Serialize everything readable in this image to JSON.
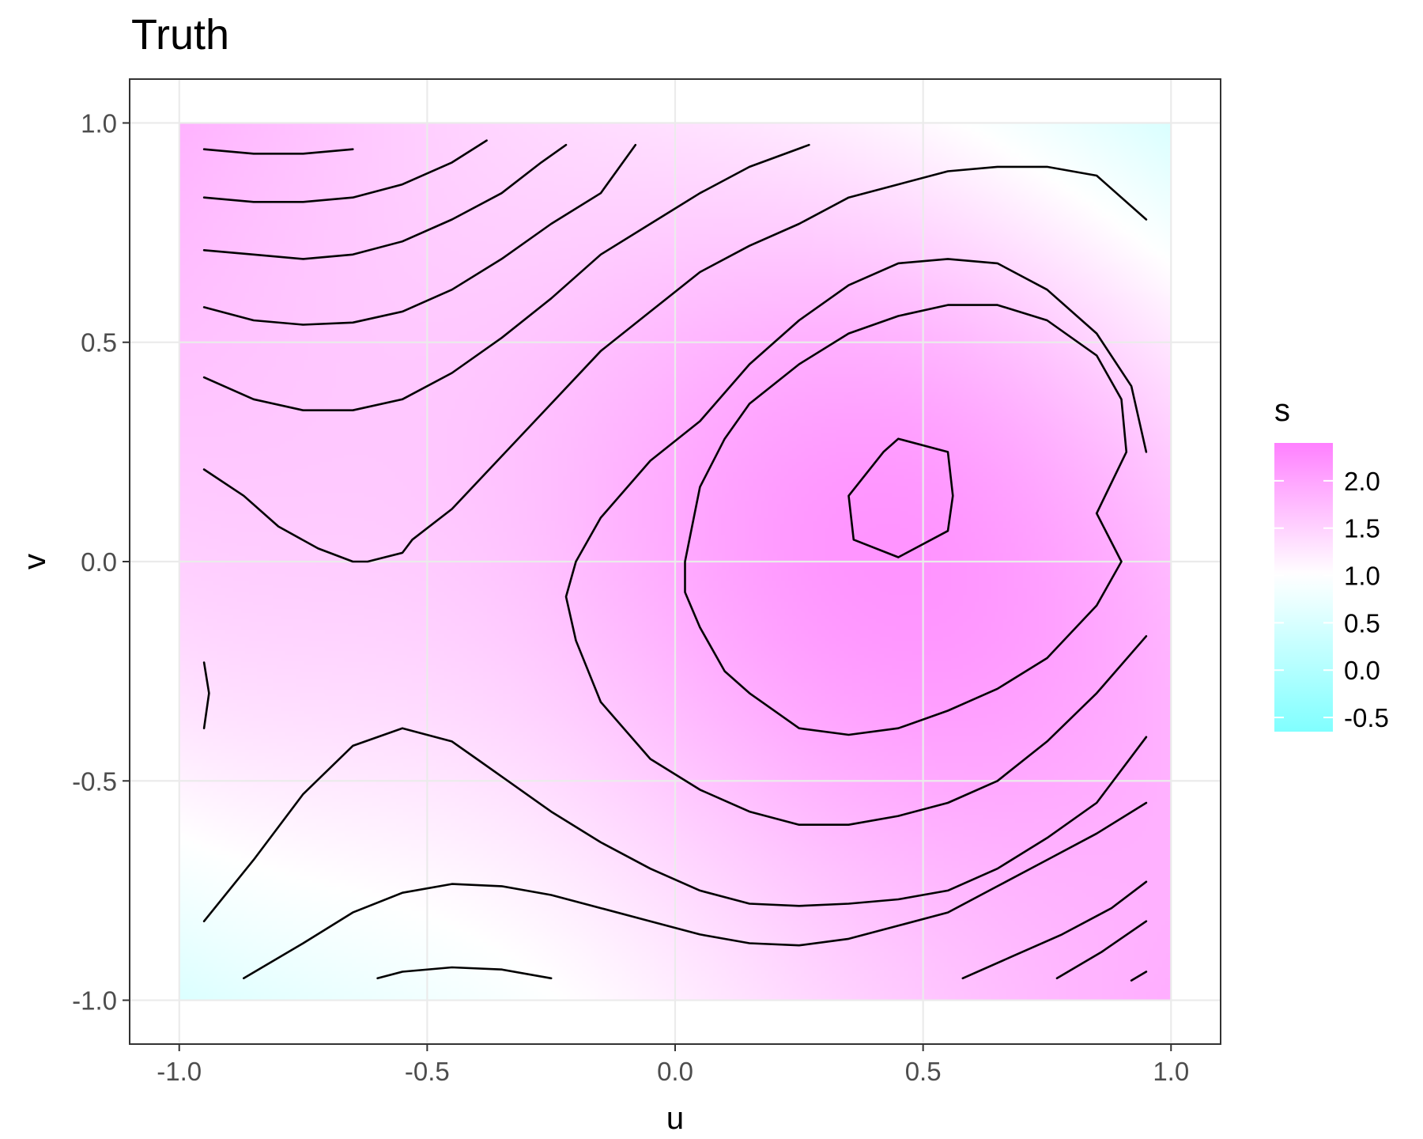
{
  "chart_data": {
    "type": "heatmap",
    "title": "Truth",
    "xlabel": "u",
    "ylabel": "v",
    "xlim": [
      -1.1,
      1.1
    ],
    "ylim": [
      -1.1,
      1.1
    ],
    "x_ticks": [
      -1.0,
      -0.5,
      0.0,
      0.5,
      1.0
    ],
    "x_tick_labels": [
      "-1.0",
      "-0.5",
      "0.0",
      "0.5",
      "1.0"
    ],
    "y_ticks": [
      -1.0,
      -0.5,
      0.0,
      0.5,
      1.0
    ],
    "y_tick_labels": [
      "-1.0",
      "-0.5",
      "0.0",
      "0.5",
      "1.0"
    ],
    "grid": true,
    "legend": {
      "title": "s",
      "position": "right",
      "range": [
        -0.65,
        2.4
      ],
      "ticks": [
        2.0,
        1.5,
        1.0,
        0.5,
        0.0,
        -0.5
      ],
      "tick_labels": [
        "2.0",
        "1.5",
        "1.0",
        "0.5",
        "0.0",
        "-0.5"
      ],
      "colors": {
        "low": "#80ffff",
        "mid": "#ffffff",
        "high": "#ff80ff",
        "midpoint": 1.0
      }
    },
    "field": {
      "description_terms": [
        {
          "type": "gaussian",
          "amp": 1.25,
          "u0": 0.45,
          "v0": 0.12,
          "su": 0.6,
          "sv": 0.65
        },
        {
          "type": "gaussian",
          "amp": 0.55,
          "u0": -1.0,
          "v0": -0.3,
          "su": 0.45,
          "sv": 0.7
        }
      ],
      "base": 0.95,
      "saddle_coef": 0.85
    },
    "contours": [
      {
        "level": "c1",
        "points": [
          [
            -0.95,
            0.94
          ],
          [
            -0.85,
            0.93
          ],
          [
            -0.75,
            0.93
          ],
          [
            -0.65,
            0.94
          ]
        ]
      },
      {
        "level": "c2",
        "points": [
          [
            -0.95,
            0.83
          ],
          [
            -0.85,
            0.82
          ],
          [
            -0.75,
            0.82
          ],
          [
            -0.65,
            0.83
          ],
          [
            -0.55,
            0.86
          ],
          [
            -0.45,
            0.91
          ],
          [
            -0.38,
            0.96
          ]
        ]
      },
      {
        "level": "c3",
        "points": [
          [
            -0.95,
            0.71
          ],
          [
            -0.85,
            0.7
          ],
          [
            -0.75,
            0.69
          ],
          [
            -0.65,
            0.7
          ],
          [
            -0.55,
            0.73
          ],
          [
            -0.45,
            0.78
          ],
          [
            -0.35,
            0.84
          ],
          [
            -0.27,
            0.91
          ],
          [
            -0.22,
            0.95
          ]
        ]
      },
      {
        "level": "c4",
        "points": [
          [
            -0.95,
            0.58
          ],
          [
            -0.85,
            0.55
          ],
          [
            -0.75,
            0.54
          ],
          [
            -0.65,
            0.545
          ],
          [
            -0.55,
            0.57
          ],
          [
            -0.45,
            0.62
          ],
          [
            -0.35,
            0.69
          ],
          [
            -0.25,
            0.77
          ],
          [
            -0.15,
            0.84
          ],
          [
            -0.08,
            0.95
          ]
        ]
      },
      {
        "level": "c5",
        "points": [
          [
            -0.95,
            0.42
          ],
          [
            -0.85,
            0.37
          ],
          [
            -0.75,
            0.345
          ],
          [
            -0.65,
            0.345
          ],
          [
            -0.55,
            0.37
          ],
          [
            -0.45,
            0.43
          ],
          [
            -0.35,
            0.51
          ],
          [
            -0.25,
            0.6
          ],
          [
            -0.15,
            0.7
          ],
          [
            -0.05,
            0.77
          ],
          [
            0.05,
            0.84
          ],
          [
            0.15,
            0.9
          ],
          [
            0.27,
            0.95
          ]
        ]
      },
      {
        "level": "c6",
        "points": [
          [
            -0.95,
            0.21
          ],
          [
            -0.87,
            0.15
          ],
          [
            -0.8,
            0.08
          ],
          [
            -0.72,
            0.03
          ],
          [
            -0.65,
            0.0
          ],
          [
            -0.62,
            0.0
          ],
          [
            -0.55,
            0.02
          ],
          [
            -0.53,
            0.05
          ],
          [
            -0.45,
            0.12
          ],
          [
            -0.35,
            0.24
          ],
          [
            -0.25,
            0.36
          ],
          [
            -0.15,
            0.48
          ],
          [
            -0.05,
            0.57
          ],
          [
            0.05,
            0.66
          ],
          [
            0.15,
            0.72
          ],
          [
            0.25,
            0.77
          ],
          [
            0.35,
            0.83
          ],
          [
            0.45,
            0.86
          ],
          [
            0.55,
            0.89
          ],
          [
            0.65,
            0.9
          ],
          [
            0.75,
            0.9
          ],
          [
            0.85,
            0.88
          ],
          [
            0.95,
            0.78
          ]
        ]
      },
      {
        "level": "c7",
        "points": [
          [
            0.95,
            0.25
          ],
          [
            0.92,
            0.4
          ],
          [
            0.85,
            0.52
          ],
          [
            0.75,
            0.62
          ],
          [
            0.65,
            0.68
          ],
          [
            0.55,
            0.69
          ],
          [
            0.45,
            0.68
          ],
          [
            0.35,
            0.63
          ],
          [
            0.25,
            0.55
          ],
          [
            0.15,
            0.45
          ],
          [
            0.05,
            0.32
          ],
          [
            -0.05,
            0.23
          ],
          [
            -0.15,
            0.1
          ],
          [
            -0.2,
            0.0
          ],
          [
            -0.22,
            -0.08
          ],
          [
            -0.2,
            -0.18
          ],
          [
            -0.15,
            -0.32
          ],
          [
            -0.05,
            -0.45
          ],
          [
            0.05,
            -0.52
          ],
          [
            0.15,
            -0.57
          ],
          [
            0.25,
            -0.6
          ],
          [
            0.35,
            -0.6
          ],
          [
            0.45,
            -0.58
          ],
          [
            0.55,
            -0.55
          ],
          [
            0.65,
            -0.5
          ],
          [
            0.75,
            -0.41
          ],
          [
            0.85,
            -0.3
          ],
          [
            0.95,
            -0.17
          ]
        ]
      },
      {
        "level": "c8",
        "points": [
          [
            0.45,
            0.01
          ],
          [
            0.55,
            0.07
          ],
          [
            0.56,
            0.15
          ],
          [
            0.55,
            0.25
          ],
          [
            0.45,
            0.28
          ],
          [
            0.42,
            0.25
          ],
          [
            0.35,
            0.15
          ],
          [
            0.36,
            0.05
          ],
          [
            0.45,
            0.01
          ]
        ]
      },
      {
        "level": "c9",
        "points": [
          [
            0.85,
            0.11
          ],
          [
            0.91,
            0.25
          ],
          [
            0.9,
            0.37
          ],
          [
            0.85,
            0.47
          ],
          [
            0.75,
            0.55
          ],
          [
            0.65,
            0.585
          ],
          [
            0.55,
            0.585
          ],
          [
            0.45,
            0.56
          ],
          [
            0.35,
            0.52
          ],
          [
            0.25,
            0.45
          ],
          [
            0.15,
            0.36
          ],
          [
            0.1,
            0.28
          ],
          [
            0.05,
            0.17
          ],
          [
            0.02,
            0.0
          ],
          [
            0.02,
            -0.07
          ],
          [
            0.05,
            -0.15
          ],
          [
            0.1,
            -0.25
          ],
          [
            0.15,
            -0.3
          ],
          [
            0.25,
            -0.38
          ],
          [
            0.35,
            -0.395
          ],
          [
            0.45,
            -0.38
          ],
          [
            0.55,
            -0.34
          ],
          [
            0.65,
            -0.29
          ],
          [
            0.75,
            -0.22
          ],
          [
            0.85,
            -0.1
          ],
          [
            0.9,
            0.0
          ],
          [
            0.85,
            0.11
          ]
        ]
      },
      {
        "level": "c10",
        "points": [
          [
            -0.95,
            -0.23
          ],
          [
            -0.94,
            -0.3
          ],
          [
            -0.95,
            -0.38
          ]
        ]
      },
      {
        "level": "c11",
        "points": [
          [
            -0.95,
            -0.82
          ],
          [
            -0.85,
            -0.68
          ],
          [
            -0.75,
            -0.53
          ],
          [
            -0.65,
            -0.42
          ],
          [
            -0.55,
            -0.38
          ],
          [
            -0.45,
            -0.41
          ],
          [
            -0.4,
            -0.45
          ],
          [
            -0.35,
            -0.49
          ],
          [
            -0.25,
            -0.57
          ],
          [
            -0.15,
            -0.64
          ],
          [
            -0.05,
            -0.7
          ],
          [
            0.05,
            -0.75
          ],
          [
            0.15,
            -0.78
          ],
          [
            0.25,
            -0.785
          ],
          [
            0.35,
            -0.78
          ],
          [
            0.45,
            -0.77
          ],
          [
            0.55,
            -0.75
          ],
          [
            0.65,
            -0.7
          ],
          [
            0.75,
            -0.63
          ],
          [
            0.85,
            -0.55
          ],
          [
            0.95,
            -0.4
          ]
        ]
      },
      {
        "level": "c12",
        "points": [
          [
            -0.87,
            -0.95
          ],
          [
            -0.75,
            -0.87
          ],
          [
            -0.65,
            -0.8
          ],
          [
            -0.55,
            -0.755
          ],
          [
            -0.45,
            -0.735
          ],
          [
            -0.35,
            -0.74
          ],
          [
            -0.25,
            -0.76
          ],
          [
            -0.15,
            -0.79
          ],
          [
            -0.05,
            -0.82
          ],
          [
            0.05,
            -0.85
          ],
          [
            0.15,
            -0.87
          ],
          [
            0.25,
            -0.875
          ],
          [
            0.35,
            -0.86
          ],
          [
            0.45,
            -0.83
          ],
          [
            0.55,
            -0.8
          ],
          [
            0.65,
            -0.74
          ],
          [
            0.75,
            -0.68
          ],
          [
            0.85,
            -0.62
          ],
          [
            0.95,
            -0.55
          ]
        ]
      },
      {
        "level": "c13",
        "points": [
          [
            -0.6,
            -0.95
          ],
          [
            -0.55,
            -0.935
          ],
          [
            -0.45,
            -0.925
          ],
          [
            -0.35,
            -0.93
          ],
          [
            -0.25,
            -0.95
          ]
        ]
      },
      {
        "level": "c14",
        "points": [
          [
            0.58,
            -0.95
          ],
          [
            0.68,
            -0.9
          ],
          [
            0.78,
            -0.85
          ],
          [
            0.88,
            -0.79
          ],
          [
            0.95,
            -0.73
          ]
        ]
      },
      {
        "level": "c15",
        "points": [
          [
            0.77,
            -0.95
          ],
          [
            0.86,
            -0.89
          ],
          [
            0.95,
            -0.82
          ]
        ]
      },
      {
        "level": "c16",
        "points": [
          [
            0.92,
            -0.955
          ],
          [
            0.95,
            -0.935
          ]
        ]
      }
    ]
  }
}
